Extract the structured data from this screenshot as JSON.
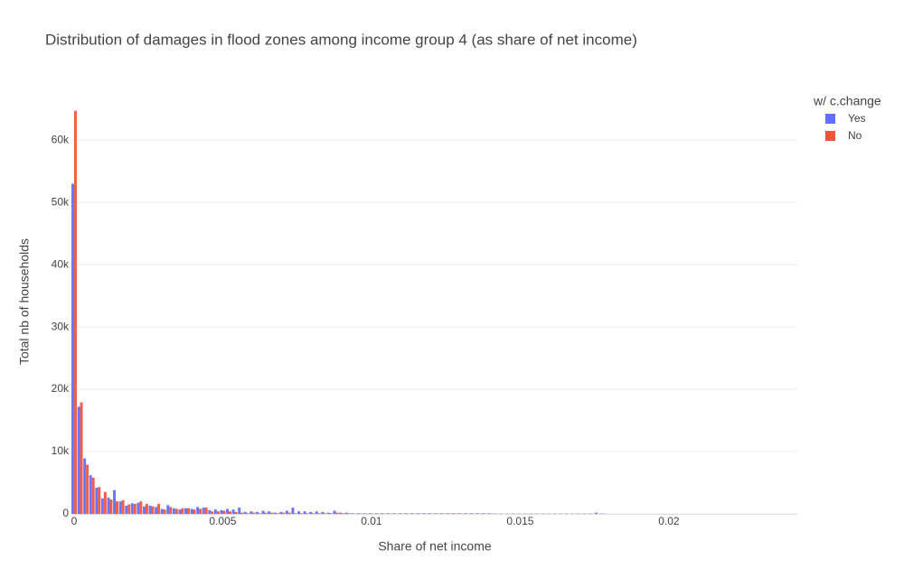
{
  "chart_data": {
    "type": "histogram",
    "title": "Distribution of damages in flood zones among income group 4 (as share of net income)",
    "x_label": "Share of net income",
    "y_label": "Total nb of households",
    "legend_title": "w/ c.change",
    "legend": "top-right",
    "grid": true,
    "bins": [
      -0.0001,
      0.0001,
      0.0003,
      0.0005,
      0.0007,
      0.0009,
      0.0011,
      0.0013,
      0.0015,
      0.0017,
      0.0019,
      0.0021,
      0.0023,
      0.0025,
      0.0027,
      0.0029,
      0.0031,
      0.0033,
      0.0035,
      0.0037,
      0.0039,
      0.0041,
      0.0043,
      0.0045,
      0.0047,
      0.0049,
      0.0051,
      0.0053,
      0.0055,
      0.0057,
      0.0059,
      0.0061,
      0.0063,
      0.0065,
      0.0067,
      0.0069,
      0.0071,
      0.0073,
      0.0075,
      0.0077,
      0.0079,
      0.0081,
      0.0083,
      0.0085,
      0.0087,
      0.0089,
      0.0091,
      0.0093,
      0.0095,
      0.0097,
      0.0099,
      0.0101,
      0.0103,
      0.0105,
      0.0107,
      0.0109,
      0.0111,
      0.0113,
      0.0115,
      0.0117,
      0.0119,
      0.0121,
      0.0123,
      0.0125,
      0.0127,
      0.0129,
      0.0131,
      0.0133,
      0.0135,
      0.0137,
      0.0139,
      0.0141,
      0.0143,
      0.0145,
      0.0147,
      0.0149,
      0.0151,
      0.0153,
      0.0155,
      0.0157,
      0.0159,
      0.0161,
      0.0163,
      0.0165,
      0.0167,
      0.0169,
      0.0171,
      0.0173,
      0.0175,
      0.0177,
      0.0179
    ],
    "series": [
      {
        "name": "Yes",
        "color": "#636efa",
        "values": [
          53000,
          17200,
          8900,
          6200,
          4200,
          2500,
          2600,
          3800,
          2000,
          1300,
          1700,
          1800,
          1200,
          1300,
          1100,
          800,
          1400,
          900,
          700,
          900,
          800,
          1100,
          1000,
          600,
          700,
          600,
          800,
          700,
          1000,
          300,
          400,
          300,
          500,
          400,
          200,
          300,
          500,
          1000,
          400,
          400,
          300,
          400,
          300,
          200,
          500,
          200,
          200,
          100,
          100,
          100,
          100,
          100,
          100,
          100,
          100,
          100,
          100,
          100,
          100,
          100,
          100,
          100,
          100,
          100,
          100,
          100,
          100,
          100,
          100,
          100,
          100,
          50,
          50,
          50,
          50,
          50,
          50,
          50,
          50,
          50,
          50,
          50,
          50,
          50,
          50,
          50,
          50,
          50,
          200,
          50
        ]
      },
      {
        "name": "No",
        "color": "#EF553B",
        "values": [
          64700,
          17900,
          7900,
          5800,
          4300,
          3500,
          2300,
          2000,
          2200,
          1500,
          1600,
          2000,
          1600,
          1200,
          1600,
          700,
          1100,
          800,
          900,
          900,
          700,
          800,
          1000,
          400,
          400,
          500,
          400,
          300,
          200,
          100,
          200,
          100,
          200,
          200,
          100,
          200,
          200,
          100,
          100,
          100,
          100,
          100,
          100,
          100,
          200,
          100,
          100,
          50,
          50,
          50,
          50,
          50,
          50,
          50,
          50,
          50,
          50,
          50,
          50,
          50,
          50,
          50,
          50,
          50,
          50,
          50,
          50,
          50,
          50,
          50,
          50,
          20,
          20,
          20,
          20,
          20,
          20,
          20,
          20,
          20,
          20,
          20,
          20,
          20,
          20,
          20,
          20,
          20,
          20,
          20
        ]
      }
    ],
    "xlim": [
      -6e-05,
      0.02432
    ],
    "xticks": [
      0,
      0.005,
      0.01,
      0.015,
      0.02
    ],
    "ylim": [
      0,
      68000
    ],
    "yticks": [
      0,
      {
        "value": 10000,
        "label": "10k"
      },
      {
        "value": 20000,
        "label": "20k"
      },
      {
        "value": 30000,
        "label": "30k"
      },
      {
        "value": 40000,
        "label": "40k"
      },
      {
        "value": 50000,
        "label": "50k"
      },
      {
        "value": 60000,
        "label": "60k"
      }
    ]
  }
}
